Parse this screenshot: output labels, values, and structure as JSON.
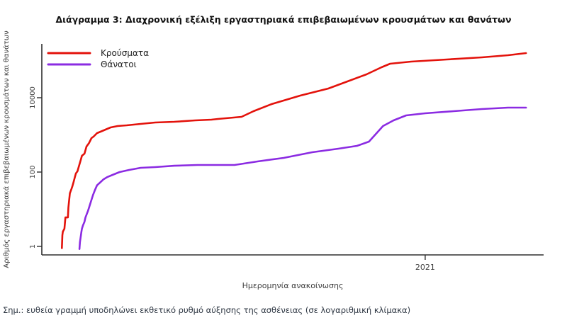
{
  "page": {
    "title": "Διάγραμμα 3: Διαχρονική εξέλιξη εργαστηριακά επιβεβαιωμένων κρουσμάτων και θανάτων",
    "note": "Σημ.: ευθεία γραμμή υποδηλώνει εκθετικό ρυθμό αύξησης της ασθένειας (σε λογαριθμική κλίμακα)"
  },
  "chart_data": {
    "type": "line",
    "title": "Διάγραμμα 3: Διαχρονική εξέλιξη εργαστηριακά επιβεβαιωμένων κρουσμάτων και θανάτων",
    "xlabel": "Ημερομηνία ανακοίνωσης",
    "ylabel": "Αριθμός εργαστηριακά επιβεβαιωμένων κρουσμάτων και θανάτων",
    "y_scale": "log10",
    "ylim": [
      1,
      500000
    ],
    "grid": false,
    "legend_position": "top-left",
    "axis_color": "#2f2f2f",
    "tick_text_color": "#3d3d3d",
    "y_ticks": [
      {
        "value": 1,
        "label": "1"
      },
      {
        "value": 100,
        "label": "100"
      },
      {
        "value": 10000,
        "label": "10000"
      }
    ],
    "x_ticks": [
      {
        "pos": 0.764,
        "label": "2021"
      }
    ],
    "series": [
      {
        "key": "cases",
        "name": "Κρούσματα",
        "color": "#e3120b",
        "points": [
          [
            0.04,
            0.9
          ],
          [
            0.041,
            2
          ],
          [
            0.042,
            2.5
          ],
          [
            0.045,
            3
          ],
          [
            0.047,
            6
          ],
          [
            0.052,
            6
          ],
          [
            0.053,
            11
          ],
          [
            0.054,
            15
          ],
          [
            0.056,
            27
          ],
          [
            0.059,
            35
          ],
          [
            0.061,
            42
          ],
          [
            0.063,
            52
          ],
          [
            0.066,
            74
          ],
          [
            0.068,
            92
          ],
          [
            0.071,
            105
          ],
          [
            0.073,
            130
          ],
          [
            0.078,
            220
          ],
          [
            0.08,
            274
          ],
          [
            0.085,
            313
          ],
          [
            0.089,
            485
          ],
          [
            0.094,
            604
          ],
          [
            0.099,
            821
          ],
          [
            0.103,
            896
          ],
          [
            0.11,
            1117
          ],
          [
            0.117,
            1219
          ],
          [
            0.127,
            1390
          ],
          [
            0.137,
            1585
          ],
          [
            0.151,
            1730
          ],
          [
            0.169,
            1807
          ],
          [
            0.197,
            1973
          ],
          [
            0.226,
            2154
          ],
          [
            0.264,
            2250
          ],
          [
            0.306,
            2455
          ],
          [
            0.338,
            2570
          ],
          [
            0.351,
            2685
          ],
          [
            0.398,
            3063
          ],
          [
            0.422,
            4345
          ],
          [
            0.458,
            6740
          ],
          [
            0.515,
            11400
          ],
          [
            0.571,
            17690
          ],
          [
            0.609,
            27400
          ],
          [
            0.647,
            42550
          ],
          [
            0.677,
            65900
          ],
          [
            0.694,
            82100
          ],
          [
            0.736,
            93600
          ],
          [
            0.807,
            106900
          ],
          [
            0.877,
            121900
          ],
          [
            0.929,
            139000
          ],
          [
            0.965,
            158500
          ]
        ]
      },
      {
        "key": "deaths",
        "name": "Θάνατοι",
        "color": "#8b2be2",
        "points": [
          [
            0.075,
            0.85
          ],
          [
            0.076,
            1.3
          ],
          [
            0.078,
            2
          ],
          [
            0.079,
            2.5
          ],
          [
            0.08,
            3
          ],
          [
            0.082,
            3.7
          ],
          [
            0.085,
            4.6
          ],
          [
            0.087,
            6
          ],
          [
            0.092,
            9
          ],
          [
            0.094,
            11
          ],
          [
            0.099,
            18
          ],
          [
            0.102,
            24
          ],
          [
            0.106,
            33
          ],
          [
            0.11,
            44
          ],
          [
            0.116,
            52
          ],
          [
            0.123,
            64
          ],
          [
            0.131,
            74
          ],
          [
            0.141,
            84
          ],
          [
            0.155,
            100
          ],
          [
            0.174,
            114
          ],
          [
            0.197,
            130
          ],
          [
            0.226,
            136
          ],
          [
            0.264,
            148
          ],
          [
            0.31,
            155
          ],
          [
            0.384,
            155
          ],
          [
            0.43,
            193
          ],
          [
            0.482,
            240
          ],
          [
            0.539,
            341
          ],
          [
            0.591,
            425
          ],
          [
            0.628,
            507
          ],
          [
            0.652,
            659
          ],
          [
            0.68,
            1730
          ],
          [
            0.701,
            2455
          ],
          [
            0.726,
            3340
          ],
          [
            0.764,
            3810
          ],
          [
            0.821,
            4345
          ],
          [
            0.877,
            4955
          ],
          [
            0.929,
            5410
          ],
          [
            0.965,
            5410
          ]
        ]
      }
    ]
  }
}
